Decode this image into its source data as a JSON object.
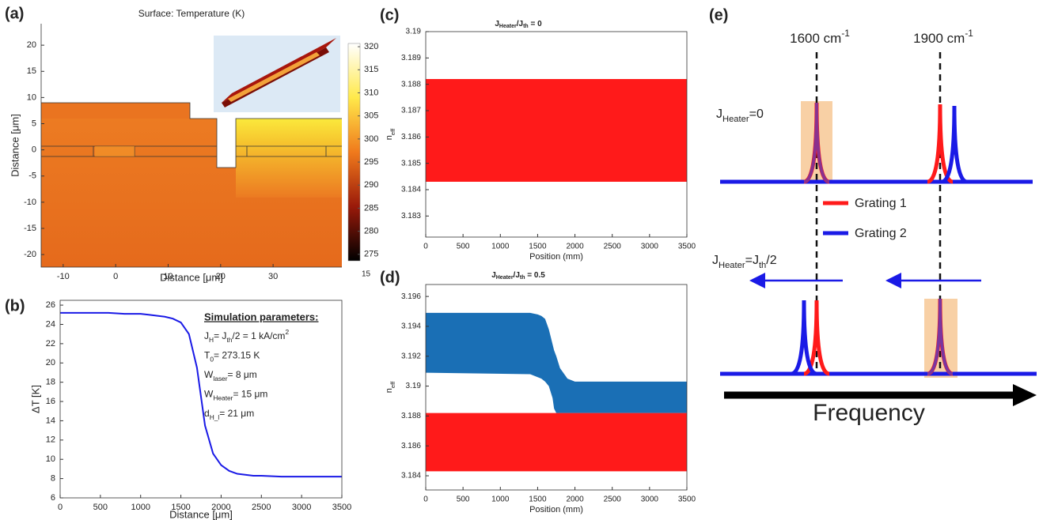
{
  "panel_labels": [
    "(a)",
    "(b)",
    "(c)",
    "(d)",
    "(e)"
  ],
  "chart_data": [
    {
      "type": "heatmap",
      "title": "Surface: Temperature (K)",
      "x_label": "Distance [μm]",
      "y_label": "Distance [μm]",
      "xlim": [
        -14.2,
        43.1
      ],
      "ylim": [
        -22.4,
        24.1
      ],
      "xticks": [
        -10,
        0,
        10,
        20,
        30
      ],
      "yticks": [
        -20,
        -15,
        -10,
        -5,
        0,
        5,
        10,
        15,
        20
      ],
      "colorbar_lim": [
        273.6,
        320.7
      ],
      "colorbar_ticks": [
        275,
        280,
        285,
        290,
        295,
        300,
        305,
        310,
        315,
        320
      ],
      "colorbar_note": "15"
    },
    {
      "type": "line",
      "x_label": "Distance [μm]",
      "y_label": "ΔT [K]",
      "color": "#1a1ae6",
      "xlim": [
        0,
        3500
      ],
      "ylim": [
        6,
        26.5
      ],
      "xticks": [
        0,
        500,
        1000,
        1500,
        2000,
        2500,
        3000,
        3500
      ],
      "yticks": [
        6,
        8,
        10,
        12,
        14,
        16,
        18,
        20,
        22,
        24,
        26
      ],
      "x": [
        0,
        200,
        400,
        600,
        800,
        1000,
        1100,
        1200,
        1300,
        1400,
        1500,
        1600,
        1700,
        1750,
        1800,
        1900,
        2000,
        2100,
        2200,
        2300,
        2400,
        2500,
        2750,
        3000,
        3250,
        3500
      ],
      "values": [
        25.2,
        25.2,
        25.2,
        25.2,
        25.1,
        25.1,
        25.0,
        24.9,
        24.8,
        24.6,
        24.2,
        23.0,
        19.5,
        16.5,
        13.5,
        10.6,
        9.4,
        8.8,
        8.5,
        8.4,
        8.3,
        8.3,
        8.2,
        8.2,
        8.2,
        8.2
      ],
      "params_title": "Simulation parameters:",
      "params": [
        [
          {
            "text": "J"
          },
          {
            "text": "H",
            "shift": "sub"
          },
          {
            "text": "= J"
          },
          {
            "text": "th",
            "shift": "sub"
          },
          {
            "text": "/2 = 1 kA/cm"
          },
          {
            "text": "2",
            "shift": "super"
          }
        ],
        [
          {
            "text": "T"
          },
          {
            "text": "0",
            "shift": "sub"
          },
          {
            "text": "= 273.15 K"
          }
        ],
        [
          {
            "text": "W"
          },
          {
            "text": "laser",
            "shift": "sub"
          },
          {
            "text": "= 8 μm"
          }
        ],
        [
          {
            "text": "W"
          },
          {
            "text": "Heater",
            "shift": "sub"
          },
          {
            "text": "= 15 μm"
          }
        ],
        [
          {
            "text": "d"
          },
          {
            "text": "H_l",
            "shift": "sub"
          },
          {
            "text": "= 21 μm"
          }
        ]
      ]
    },
    {
      "type": "band",
      "title": [
        {
          "text": "J"
        },
        {
          "text": "Heater",
          "shift": "sub"
        },
        {
          "text": "/J"
        },
        {
          "text": "th",
          "shift": "sub"
        },
        {
          "text": " = 0"
        }
      ],
      "x_label": "Position (mm)",
      "y_label": [
        {
          "text": "n"
        },
        {
          "text": "eff",
          "shift": "sub"
        }
      ],
      "xlim": [
        0,
        3500
      ],
      "ylim": [
        3.1822,
        3.19
      ],
      "xticks": [
        0,
        500,
        1000,
        1500,
        2000,
        2500,
        3000,
        3500
      ],
      "yticks": [
        3.183,
        3.184,
        3.185,
        3.186,
        3.187,
        3.188,
        3.189,
        3.19
      ],
      "series": [
        {
          "color": "#ff1a1a",
          "x": [
            0,
            3500
          ],
          "lower": [
            3.1843,
            3.1843
          ],
          "upper": [
            3.1882,
            3.1882
          ]
        }
      ]
    },
    {
      "type": "band",
      "title": [
        {
          "text": "J"
        },
        {
          "text": "Heater",
          "shift": "sub"
        },
        {
          "text": "/J"
        },
        {
          "text": "th",
          "shift": "sub"
        },
        {
          "text": " = 0.5"
        }
      ],
      "x_label": "Position (mm)",
      "y_label": [
        {
          "text": "n"
        },
        {
          "text": "eff",
          "shift": "sub"
        }
      ],
      "xlim": [
        0,
        3500
      ],
      "ylim": [
        3.18305,
        3.1968
      ],
      "xticks": [
        0,
        500,
        1000,
        1500,
        2000,
        2500,
        3000,
        3500
      ],
      "yticks": [
        3.184,
        3.186,
        3.188,
        3.19,
        3.192,
        3.194,
        3.196
      ],
      "series": [
        {
          "color": "#1a6fb5",
          "x": [
            0,
            1400,
            1500,
            1550,
            1600,
            1650,
            1700,
            1720,
            1750,
            1800,
            1900,
            2000,
            2200,
            3500
          ],
          "lower": [
            3.1909,
            3.1908,
            3.1906,
            3.1905,
            3.1903,
            3.19,
            3.1892,
            3.1885,
            3.1882,
            3.1882,
            3.1882,
            3.1882,
            3.1882,
            3.1882
          ],
          "upper": [
            3.1949,
            3.1949,
            3.1948,
            3.1947,
            3.1945,
            3.1938,
            3.1928,
            3.1924,
            3.192,
            3.1912,
            3.1905,
            3.1903,
            3.1903,
            3.1903
          ]
        },
        {
          "color": "#ff1a1a",
          "x": [
            0,
            3500
          ],
          "lower": [
            3.1843,
            3.1843
          ],
          "upper": [
            3.1882,
            3.1882
          ]
        }
      ]
    }
  ],
  "diagram": {
    "wavenumbers": [
      [
        {
          "text": "1600 cm"
        },
        {
          "text": "-1",
          "shift": "super"
        }
      ],
      [
        {
          "text": "1900 cm"
        },
        {
          "text": "-1",
          "shift": "super"
        }
      ]
    ],
    "states": [
      [
        {
          "text": "J"
        },
        {
          "text": "Heater",
          "shift": "sub"
        },
        {
          "text": "=0"
        }
      ],
      [
        {
          "text": "J"
        },
        {
          "text": "Heater",
          "shift": "sub"
        },
        {
          "text": "=J"
        },
        {
          "text": "th",
          "shift": "sub"
        },
        {
          "text": "/2"
        }
      ]
    ],
    "legend": [
      "Grating 1",
      "Grating 2"
    ],
    "axis_label": "Frequency"
  }
}
